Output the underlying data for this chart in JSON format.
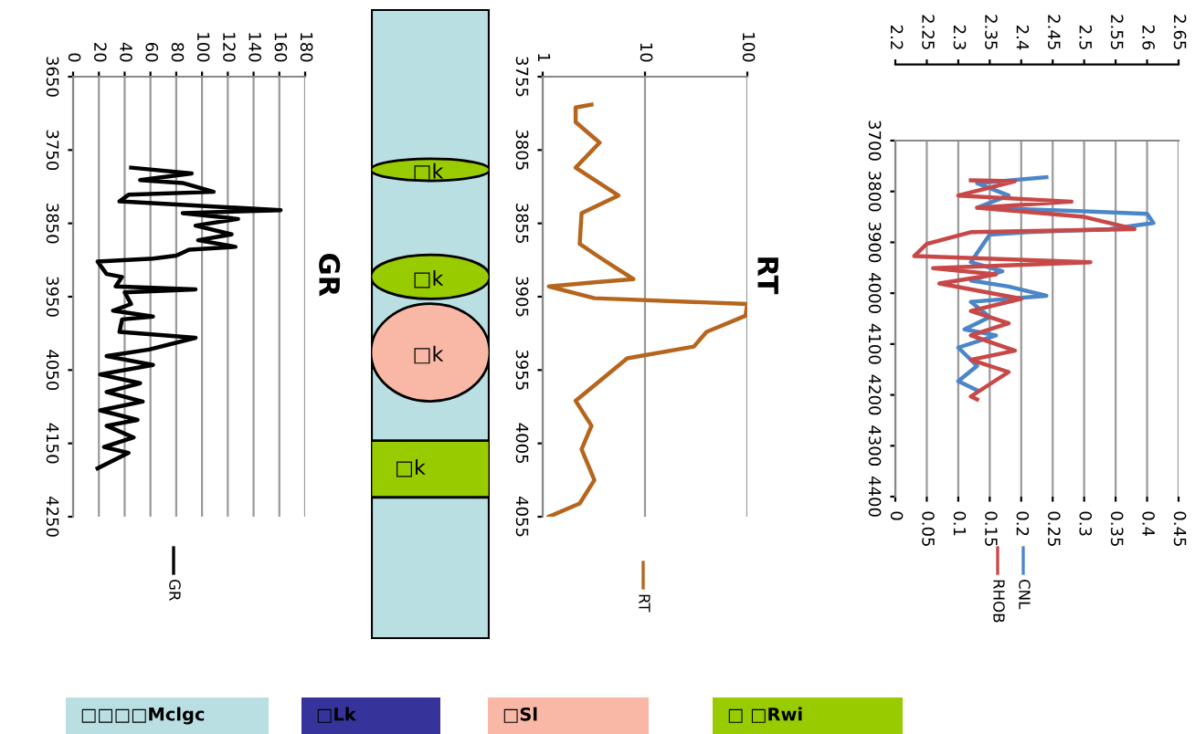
{
  "chart_data": [
    {
      "type": "line",
      "title": "GR",
      "orientation": "horizontal",
      "legend": "bottom",
      "grid": "x",
      "xlim": [
        0,
        180
      ],
      "xticks": [
        0,
        20,
        40,
        60,
        80,
        100,
        120,
        140,
        160,
        180
      ],
      "ylim": [
        4250,
        3650
      ],
      "yticks": [
        3650,
        3750,
        3850,
        3950,
        4050,
        4150,
        4250
      ],
      "series": [
        {
          "name": "GR",
          "color": "#000000",
          "x": [
            3774,
            3782,
            3791,
            3795,
            3807,
            3811,
            3820,
            3832,
            3836,
            3844,
            3853,
            3865,
            3873,
            3882,
            3886,
            3894,
            3898,
            3902,
            3919,
            3923,
            3936,
            3940,
            3944,
            3960,
            3969,
            3977,
            3981,
            3998,
            4006,
            4022,
            4031,
            4043,
            4056,
            4068,
            4080,
            4093,
            4105,
            4118,
            4126,
            4142,
            4155,
            4163,
            4184
          ],
          "values": [
            45,
            92,
            52,
            85,
            109,
            43,
            36,
            161,
            85,
            128,
            95,
            123,
            97,
            126,
            90,
            80,
            62,
            19,
            26,
            38,
            33,
            95,
            40,
            45,
            31,
            62,
            38,
            36,
            95,
            59,
            26,
            62,
            21,
            52,
            26,
            54,
            21,
            50,
            26,
            47,
            24,
            43,
            19
          ]
        }
      ]
    },
    {
      "type": "line",
      "title": "RT",
      "orientation": "horizontal",
      "legend": "bottom",
      "grid": "x",
      "log": "x",
      "xlim": [
        1,
        100
      ],
      "xticks": [
        1,
        10,
        100
      ],
      "ylim": [
        4055,
        3755
      ],
      "yticks": [
        3755,
        3805,
        3855,
        3905,
        3955,
        4005,
        4055
      ],
      "series": [
        {
          "name": "RT",
          "color": "#b5651d",
          "x": [
            3774,
            3776,
            3786,
            3800,
            3817,
            3836,
            3848,
            3869,
            3877,
            3885,
            3893,
            3895,
            3898,
            3906,
            3910,
            3918,
            3929,
            3939,
            3947,
            3964,
            3976,
            3993,
            4009,
            4030,
            4046,
            4055
          ],
          "values": [
            3.0,
            2.1,
            2.1,
            3.6,
            2.1,
            5.5,
            2.4,
            2.3,
            3.4,
            5.1,
            7.7,
            3.4,
            1.15,
            3.2,
            100,
            96,
            40,
            30,
            6.7,
            3.4,
            2.1,
            3.0,
            2.4,
            3.2,
            2.3,
            1.15
          ]
        }
      ]
    },
    {
      "type": "line",
      "orientation": "horizontal",
      "legend": "bottom",
      "grid": "x",
      "xlim": [
        0,
        0.45
      ],
      "xticks": [
        0,
        0.05,
        0.1,
        0.15,
        0.2,
        0.25,
        0.3,
        0.35,
        0.4,
        0.45
      ],
      "x2lim": [
        2.2,
        2.65
      ],
      "x2ticks": [
        2.2,
        2.25,
        2.3,
        2.35,
        2.4,
        2.45,
        2.5,
        2.55,
        2.6,
        2.65
      ],
      "ylim": [
        4400,
        3700
      ],
      "yticks": [
        3700,
        3800,
        3900,
        4000,
        4100,
        4200,
        4300,
        4400
      ],
      "series": [
        {
          "name": "CNL",
          "color": "#4a86c8",
          "x": [
            3772,
            3784,
            3808,
            3832,
            3838,
            3844,
            3862,
            3874,
            3880,
            3885,
            3903,
            3939,
            3957,
            3975,
            3987,
            4005,
            4017,
            4047,
            4071,
            4083,
            4107,
            4143,
            4173,
            4191
          ],
          "values": [
            0.24,
            0.13,
            0.18,
            0.13,
            0.28,
            0.4,
            0.41,
            0.34,
            0.21,
            0.15,
            0.14,
            0.12,
            0.17,
            0.12,
            0.18,
            0.24,
            0.12,
            0.15,
            0.11,
            0.16,
            0.1,
            0.13,
            0.1,
            0.13
          ]
        },
        {
          "name": "RHOB",
          "color": "#c84848",
          "axis": "x2",
          "x": [
            3778,
            3780,
            3808,
            3820,
            3832,
            3850,
            3874,
            3880,
            3903,
            3927,
            3939,
            3951,
            3963,
            3981,
            4011,
            4035,
            4059,
            4083,
            4113,
            4131,
            4155,
            4203,
            4209
          ],
          "values": [
            2.32,
            2.39,
            2.3,
            2.48,
            2.33,
            2.5,
            2.58,
            2.32,
            2.25,
            2.23,
            2.51,
            2.26,
            2.36,
            2.27,
            2.4,
            2.32,
            2.38,
            2.32,
            2.39,
            2.32,
            2.38,
            2.32,
            2.33
          ]
        }
      ]
    },
    {
      "type": "other",
      "annotations": [
        "□k",
        "□k",
        "□k",
        "□k",
        "□□□□Mclgc",
        "□Lk",
        "□Sl",
        "□ □Rwi"
      ]
    }
  ]
}
